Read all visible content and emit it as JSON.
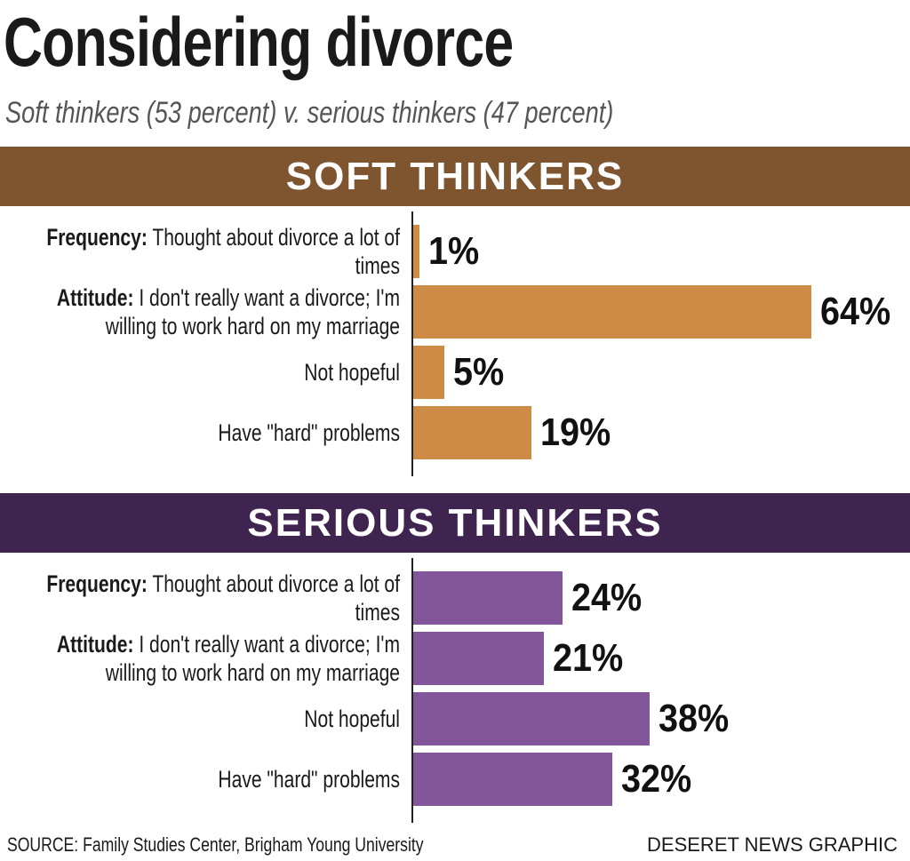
{
  "title": "Considering divorce",
  "subtitle": "Soft thinkers (53 percent) v. serious thinkers (47 percent)",
  "source": "SOURCE: Family Studies Center, Brigham Young University",
  "credit": "DESERET NEWS GRAPHIC",
  "chart_data": [
    {
      "type": "bar",
      "orientation": "horizontal",
      "title": "SOFT THINKERS",
      "header_color": "#7f5530",
      "color": "#cd8b45",
      "categories": [
        "Frequency: Thought about divorce a lot of times",
        "Attitude: I don't really want a divorce; I'm willing to work hard on my marriage",
        "Not hopeful",
        "Have \"hard\" problems"
      ],
      "values": [
        1,
        64,
        5,
        19
      ],
      "value_labels": [
        "1%",
        "64%",
        "5%",
        "19%"
      ]
    },
    {
      "type": "bar",
      "orientation": "horizontal",
      "title": "SERIOUS THINKERS",
      "header_color": "#3f2450",
      "color": "#83559a",
      "categories": [
        "Frequency: Thought about divorce a lot of times",
        "Attitude: I don't really want a divorce; I'm willing to work hard on my marriage",
        "Not hopeful",
        "Have \"hard\" problems"
      ],
      "values": [
        24,
        21,
        38,
        32
      ],
      "value_labels": [
        "24%",
        "21%",
        "38%",
        "32%"
      ]
    }
  ]
}
